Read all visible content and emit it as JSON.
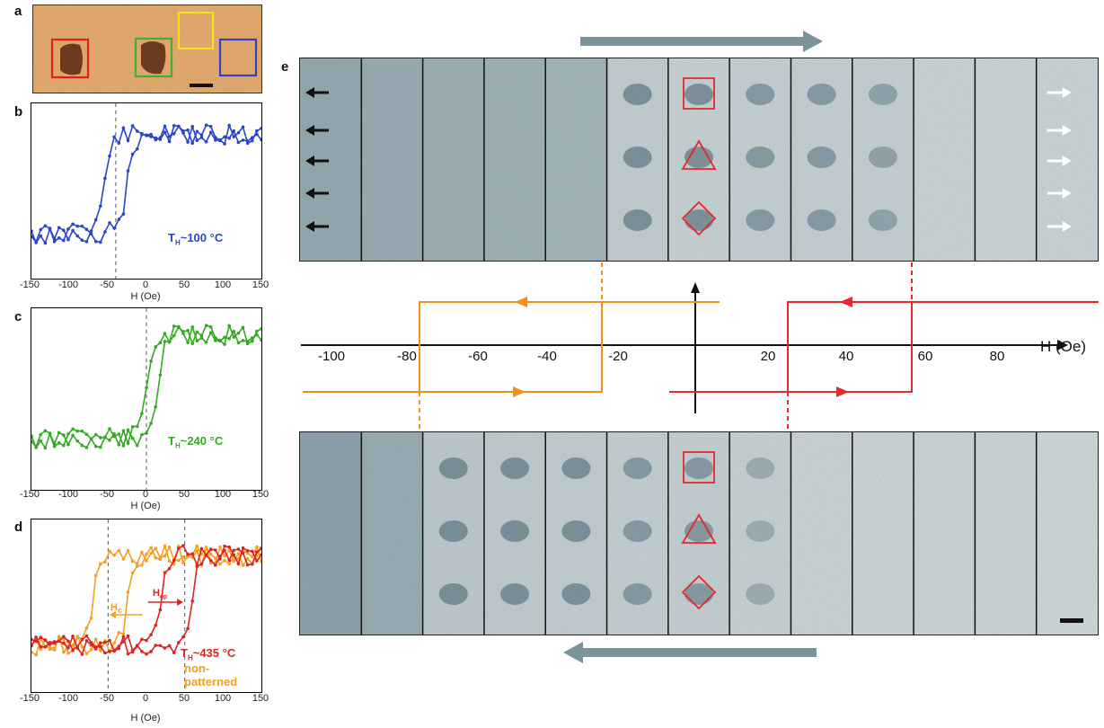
{
  "panels": {
    "a": "a",
    "b": "b",
    "c": "c",
    "d": "d",
    "e": "e"
  },
  "plot_b": {
    "xticks": [
      "-150",
      "-100",
      "-50",
      "0",
      "50",
      "100",
      "150"
    ],
    "xlabel": "H (Oe)",
    "label_main": "T",
    "label_sub": "H",
    "label_rest": "~100 °C",
    "color": "#2a45c8"
  },
  "plot_c": {
    "xticks": [
      "-150",
      "-100",
      "-50",
      "0",
      "50",
      "100",
      "150"
    ],
    "xlabel": "H (Oe)",
    "label_main": "T",
    "label_sub": "H",
    "label_rest": "~240 °C",
    "color": "#33aa22"
  },
  "plot_d": {
    "xticks": [
      "-150",
      "-100",
      "-50",
      "0",
      "50",
      "100",
      "150"
    ],
    "xlabel": "H (Oe)",
    "label_main": "T",
    "label_sub": "H",
    "label_rest": "~435 °C",
    "non_patterned": "non-patterned",
    "hc_main": "H",
    "hc_sub": "c",
    "hep_main": "H",
    "hep_sub": "ep",
    "color_red": "#dd2222",
    "color_orange": "#f2a020"
  },
  "panel_e": {
    "axis_ticks": [
      "-100",
      "-80",
      "-60",
      "-40",
      "-20",
      "20",
      "40",
      "60",
      "80"
    ],
    "axis_label": "H (Oe)",
    "orange": "#f2901e",
    "red": "#e8272f",
    "arrow_gray": "#7d939c"
  },
  "chart_data": [
    {
      "type": "line",
      "panel": "b",
      "xlabel": "H (Oe)",
      "xlim": [
        -150,
        150
      ],
      "coercive_line_x": -40,
      "series": [
        {
          "values_descending_switch": -40,
          "values_ascending_switch": -25
        }
      ]
    },
    {
      "type": "line",
      "panel": "c",
      "xlabel": "H (Oe)",
      "xlim": [
        -150,
        150
      ],
      "coercive_line_x": 0,
      "series": [
        {
          "values_descending_switch": 0,
          "values_ascending_switch": 15
        }
      ]
    },
    {
      "type": "line",
      "panel": "d",
      "xlabel": "H (Oe)",
      "xlim": [
        -150,
        150
      ],
      "guide_lines_x": [
        -50,
        50
      ],
      "series": [
        {
          "name": "T_H~435 °C"
        },
        {
          "name": "non-patterned"
        }
      ]
    }
  ]
}
